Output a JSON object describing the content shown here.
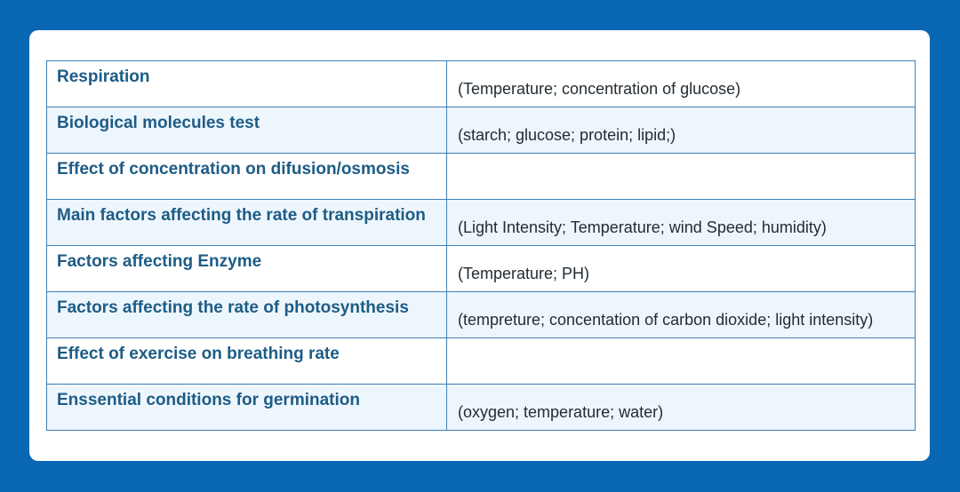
{
  "rows": [
    {
      "topic": "Respiration",
      "factors": "(Temperature; concentration of glucose)"
    },
    {
      "topic": "Biological molecules test",
      "factors": "(starch; glucose; protein; lipid;)"
    },
    {
      "topic": "Effect of concentration on difusion/osmosis",
      "factors": ""
    },
    {
      "topic": "Main factors affecting the rate of transpiration",
      "factors": "(Light Intensity; Temperature; wind Speed; humidity)"
    },
    {
      "topic": "Factors affecting Enzyme",
      "factors": "(Temperature; PH)"
    },
    {
      "topic": "Factors affecting the rate of photosynthesis",
      "factors": "(tempreture; concentation of carbon dioxide; light intensity)"
    },
    {
      "topic": "Effect of exercise on breathing rate",
      "factors": ""
    },
    {
      "topic": "Enssential conditions for germination",
      "factors": "(oxygen; temperature; water)"
    }
  ],
  "colors": {
    "background": "#0a67b4",
    "card": "#ffffff",
    "border": "#3f7fb5",
    "stripe": "#eef6fd",
    "topic_text": "#1d5c86",
    "factor_text": "#222c33"
  }
}
